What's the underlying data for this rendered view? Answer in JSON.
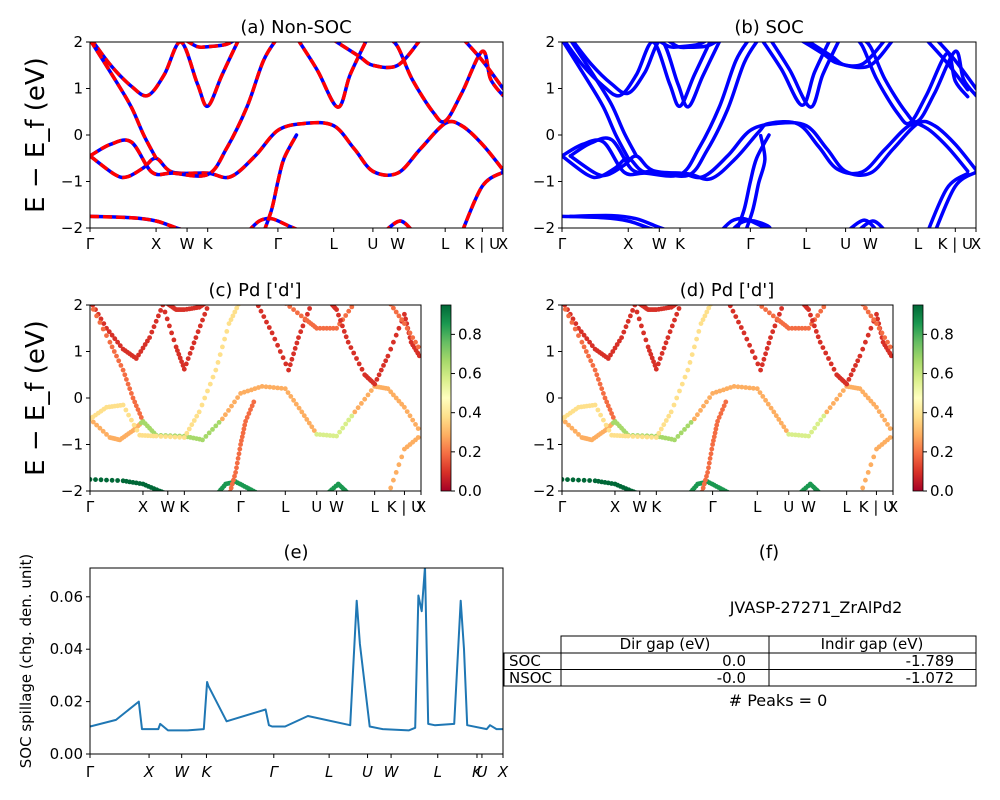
{
  "figure": {
    "ylabel_band": "E − E_f (eV)",
    "ylabel_spillage": "SOC spillage (chg. den. unit)"
  },
  "colors": {
    "nonsoc_solid": "#0000ff",
    "nonsoc_dash": "#ff0000",
    "soc": "#0000ff",
    "spillage": "#1f77b4",
    "colormap": "RdYlGn"
  },
  "chart_data": [
    {
      "id": "a",
      "type": "line",
      "title": "(a) Non-SOC",
      "ylim": [
        -2,
        2
      ],
      "yticks": [
        "2",
        "1",
        "0",
        "−1",
        "−2"
      ],
      "xticks": [
        "Γ",
        "X",
        "W",
        "K",
        "Γ",
        "L",
        "U",
        "W",
        "L",
        "K | U",
        "X"
      ],
      "legend": "none",
      "series": [
        {
          "name": "",
          "style": "blue solid with red dashed overlay",
          "x": [
            0,
            0.5,
            1.6,
            2.5,
            3.3,
            4.4,
            5.5,
            6.3,
            7.4
          ],
          "y": [
            -0.45,
            -0.9,
            -0.8,
            -0.85,
            0.25,
            0.2,
            -0.8,
            0.25,
            -0.3
          ]
        },
        {
          "name": "",
          "x": [
            0,
            0.8,
            1.5,
            1.9,
            2.3
          ],
          "y": [
            2.0,
            0.85,
            2.0,
            0.6,
            2.0
          ]
        },
        {
          "name": "",
          "x": [
            0,
            0.7,
            1.4,
            2.3,
            3.0
          ],
          "y": [
            -1.75,
            -1.8,
            -2.0,
            -1.9,
            -1.8
          ]
        }
      ]
    },
    {
      "id": "b",
      "type": "line",
      "title": "(b) SOC",
      "ylim": [
        -2,
        2
      ],
      "yticks": [
        "2",
        "1",
        "0",
        "−1",
        "−2"
      ],
      "xticks": [
        "Γ",
        "X",
        "W",
        "K",
        "Γ",
        "L",
        "U",
        "W",
        "L",
        "K | U",
        "X"
      ],
      "legend": "none",
      "series": [
        {
          "name": "",
          "x": [
            0,
            0.5,
            1.6,
            2.5,
            3.3,
            4.4,
            5.5,
            6.3,
            7.4
          ],
          "y": [
            -0.4,
            -0.95,
            -0.8,
            -0.85,
            0.25,
            0.2,
            -0.8,
            0.25,
            -0.3
          ]
        },
        {
          "name": "",
          "x": [
            0,
            0.8,
            1.5,
            1.9,
            2.3
          ],
          "y": [
            2.0,
            0.85,
            2.0,
            0.55,
            2.0
          ]
        }
      ]
    },
    {
      "id": "c",
      "type": "scatter",
      "title": "(c)  Pd ['d']",
      "ylim": [
        -2,
        2
      ],
      "yticks": [
        "2",
        "1",
        "0",
        "−1",
        "−2"
      ],
      "xticks": [
        "Γ",
        "X",
        "W",
        "K",
        "Γ",
        "L",
        "U",
        "W",
        "L",
        "K | U",
        "X"
      ],
      "colorbar": {
        "ticks": [
          "0.0",
          "0.2",
          "0.4",
          "0.6",
          "0.8"
        ],
        "range": [
          0,
          0.95
        ]
      },
      "note": "points colored by Pd d-orbital weight"
    },
    {
      "id": "d",
      "type": "scatter",
      "title": "(d) Pd ['d']",
      "ylim": [
        -2,
        2
      ],
      "yticks": [
        "2",
        "1",
        "0",
        "−1",
        "−2"
      ],
      "xticks": [
        "Γ",
        "X",
        "W",
        "K",
        "Γ",
        "L",
        "U",
        "W",
        "L",
        "K | U",
        "X"
      ],
      "colorbar": {
        "ticks": [
          "0.0",
          "0.2",
          "0.4",
          "0.6",
          "0.8"
        ],
        "range": [
          0,
          0.95
        ]
      }
    },
    {
      "id": "e",
      "type": "line",
      "title": "(e)",
      "ylabel": "SOC spillage (chg. den. unit)",
      "ylim": [
        0,
        0.071
      ],
      "yticks": [
        "0.06",
        "0.04",
        "0.02",
        "0.00"
      ],
      "xticks": [
        "Γ",
        "X",
        "W",
        "K",
        "Γ",
        "L",
        "U",
        "W",
        "L",
        "K",
        "U",
        "X"
      ],
      "series": [
        {
          "name": "",
          "x": [
            0,
            0.4,
            0.75,
            0.8,
            0.95,
            1.05,
            1.08,
            1.2,
            1.5,
            1.75,
            1.8,
            1.82,
            2.1,
            2.7,
            2.75,
            2.8,
            3.0,
            3.35,
            4.0,
            4.1,
            4.15,
            4.3,
            4.5,
            4.9,
            5.0,
            5.05,
            5.1,
            5.15,
            5.2,
            5.3,
            5.6,
            5.7,
            5.75,
            5.8,
            6.1,
            6.15,
            6.25,
            6.35
          ],
          "y": [
            0.0105,
            0.013,
            0.02,
            0.0095,
            0.0095,
            0.0095,
            0.0115,
            0.009,
            0.009,
            0.0095,
            0.0275,
            0.026,
            0.0125,
            0.017,
            0.011,
            0.0105,
            0.0105,
            0.0145,
            0.011,
            0.0585,
            0.042,
            0.0105,
            0.0095,
            0.009,
            0.01,
            0.0605,
            0.0545,
            0.0715,
            0.0115,
            0.011,
            0.0115,
            0.0585,
            0.04,
            0.011,
            0.0095,
            0.011,
            0.0095,
            0.0095
          ]
        }
      ]
    }
  ],
  "panel_f": {
    "title": "(f)",
    "material": "JVASP-27271_ZrAlPd2",
    "columns": [
      "Dir gap (eV)",
      "Indir gap (eV)"
    ],
    "rows": [
      {
        "label": "SOC",
        "dir": "0.0",
        "indir": "-1.789"
      },
      {
        "label": "NSOC",
        "dir": "-0.0",
        "indir": "-1.072"
      }
    ],
    "peaks": "# Peaks = 0"
  }
}
